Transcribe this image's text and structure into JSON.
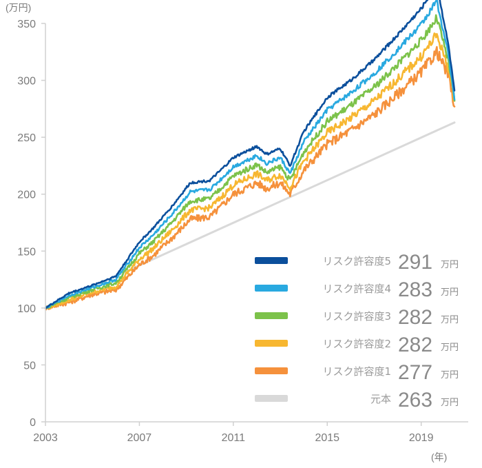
{
  "chart_data": {
    "type": "line",
    "y_unit": "(万円)",
    "x_unit": "(年)",
    "ylim": [
      0,
      350
    ],
    "y_ticks": [
      "0",
      "50",
      "100",
      "150",
      "200",
      "250",
      "300",
      "350"
    ],
    "x_ticks": [
      "2003",
      "2007",
      "2011",
      "2015",
      "2019"
    ],
    "xlim": [
      "2003-01",
      "2020-06"
    ],
    "grid": false,
    "legend_position": "bottom-right",
    "series": [
      {
        "name": "リスク許容度5",
        "final_label": "291",
        "unit": "万円",
        "color": "#0b4f9c",
        "values": [
          [
            "2003-01",
            100
          ],
          [
            "2004-01",
            113
          ],
          [
            "2005-01",
            120
          ],
          [
            "2006-01",
            128
          ],
          [
            "2007-01",
            158
          ],
          [
            "2007-08",
            170
          ],
          [
            "2008-06",
            190
          ],
          [
            "2009-03",
            210
          ],
          [
            "2010-01",
            212
          ],
          [
            "2010-06",
            220
          ],
          [
            "2011-01",
            232
          ],
          [
            "2012-01",
            242
          ],
          [
            "2012-06",
            235
          ],
          [
            "2013-01",
            240
          ],
          [
            "2013-06",
            225
          ],
          [
            "2014-01",
            255
          ],
          [
            "2015-01",
            285
          ],
          [
            "2016-01",
            300
          ],
          [
            "2017-01",
            318
          ],
          [
            "2018-01",
            340
          ],
          [
            "2019-01",
            363
          ],
          [
            "2019-09",
            385
          ],
          [
            "2020-03",
            330
          ],
          [
            "2020-06",
            291
          ]
        ]
      },
      {
        "name": "リスク許容度4",
        "final_label": "283",
        "unit": "万円",
        "color": "#29a9e0",
        "values": [
          [
            "2003-01",
            100
          ],
          [
            "2004-01",
            111
          ],
          [
            "2005-01",
            118
          ],
          [
            "2006-01",
            125
          ],
          [
            "2007-01",
            153
          ],
          [
            "2007-08",
            164
          ],
          [
            "2008-06",
            183
          ],
          [
            "2009-03",
            202
          ],
          [
            "2010-01",
            204
          ],
          [
            "2010-06",
            212
          ],
          [
            "2011-01",
            224
          ],
          [
            "2012-01",
            234
          ],
          [
            "2012-06",
            227
          ],
          [
            "2013-01",
            232
          ],
          [
            "2013-06",
            218
          ],
          [
            "2014-01",
            246
          ],
          [
            "2015-01",
            274
          ],
          [
            "2016-01",
            289
          ],
          [
            "2017-01",
            306
          ],
          [
            "2018-01",
            327
          ],
          [
            "2019-01",
            349
          ],
          [
            "2019-09",
            370
          ],
          [
            "2020-03",
            322
          ],
          [
            "2020-06",
            283
          ]
        ]
      },
      {
        "name": "リスク許容度3",
        "final_label": "282",
        "unit": "万円",
        "color": "#7cc24a",
        "values": [
          [
            "2003-01",
            100
          ],
          [
            "2004-01",
            109
          ],
          [
            "2005-01",
            116
          ],
          [
            "2006-01",
            122
          ],
          [
            "2007-01",
            148
          ],
          [
            "2007-08",
            158
          ],
          [
            "2008-06",
            176
          ],
          [
            "2009-03",
            194
          ],
          [
            "2010-01",
            196
          ],
          [
            "2010-06",
            204
          ],
          [
            "2011-01",
            216
          ],
          [
            "2012-01",
            226
          ],
          [
            "2012-06",
            219
          ],
          [
            "2013-01",
            224
          ],
          [
            "2013-06",
            212
          ],
          [
            "2014-01",
            237
          ],
          [
            "2015-01",
            264
          ],
          [
            "2016-01",
            278
          ],
          [
            "2017-01",
            294
          ],
          [
            "2018-01",
            314
          ],
          [
            "2019-01",
            335
          ],
          [
            "2019-09",
            355
          ],
          [
            "2020-03",
            316
          ],
          [
            "2020-06",
            282
          ]
        ]
      },
      {
        "name": "リスク許容度2",
        "final_label": "282",
        "unit": "万円",
        "color": "#f7b731",
        "values": [
          [
            "2003-01",
            100
          ],
          [
            "2004-01",
            107
          ],
          [
            "2005-01",
            114
          ],
          [
            "2006-01",
            119
          ],
          [
            "2007-01",
            143
          ],
          [
            "2007-08",
            152
          ],
          [
            "2008-06",
            169
          ],
          [
            "2009-03",
            186
          ],
          [
            "2010-01",
            188
          ],
          [
            "2010-06",
            196
          ],
          [
            "2011-01",
            208
          ],
          [
            "2012-01",
            218
          ],
          [
            "2012-06",
            212
          ],
          [
            "2013-01",
            217
          ],
          [
            "2013-06",
            206
          ],
          [
            "2014-01",
            229
          ],
          [
            "2015-01",
            254
          ],
          [
            "2016-01",
            267
          ],
          [
            "2017-01",
            282
          ],
          [
            "2018-01",
            301
          ],
          [
            "2019-01",
            321
          ],
          [
            "2019-09",
            340
          ],
          [
            "2020-03",
            310
          ],
          [
            "2020-06",
            282
          ]
        ]
      },
      {
        "name": "リスク許容度1",
        "final_label": "277",
        "unit": "万円",
        "color": "#f5913c",
        "values": [
          [
            "2003-01",
            100
          ],
          [
            "2004-01",
            105
          ],
          [
            "2005-01",
            112
          ],
          [
            "2006-01",
            116
          ],
          [
            "2007-01",
            138
          ],
          [
            "2007-08",
            146
          ],
          [
            "2008-06",
            162
          ],
          [
            "2009-03",
            178
          ],
          [
            "2010-01",
            180
          ],
          [
            "2010-06",
            188
          ],
          [
            "2011-01",
            200
          ],
          [
            "2012-01",
            210
          ],
          [
            "2012-06",
            205
          ],
          [
            "2013-01",
            210
          ],
          [
            "2013-06",
            200
          ],
          [
            "2014-01",
            221
          ],
          [
            "2015-01",
            244
          ],
          [
            "2016-01",
            256
          ],
          [
            "2017-01",
            270
          ],
          [
            "2018-01",
            288
          ],
          [
            "2019-01",
            307
          ],
          [
            "2019-09",
            325
          ],
          [
            "2020-03",
            304
          ],
          [
            "2020-06",
            277
          ]
        ]
      },
      {
        "name": "元本",
        "final_label": "263",
        "unit": "万円",
        "color": "#d9d9d9",
        "values": [
          [
            "2003-01",
            100
          ],
          [
            "2020-06",
            263
          ]
        ]
      }
    ]
  }
}
